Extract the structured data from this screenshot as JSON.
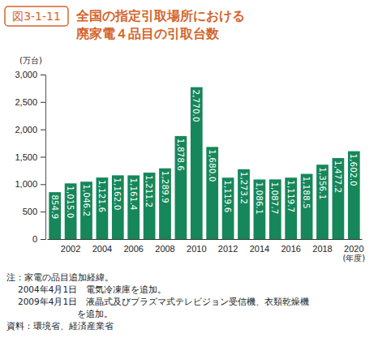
{
  "chart_data": {
    "type": "bar",
    "figure_label": "図3-1-11",
    "title": [
      "全国の指定引取場所における",
      "廃家電４品目の引取台数"
    ],
    "y_label": "(万台)",
    "x_label": "(年度)",
    "categories": [
      null,
      "2002",
      null,
      "2004",
      null,
      "2006",
      null,
      "2008",
      null,
      "2010",
      null,
      "2012",
      null,
      "2014",
      null,
      "2016",
      null,
      "2018",
      null,
      "2020"
    ],
    "values": [
      854.9,
      1015.0,
      1046.2,
      1121.6,
      1162.0,
      1161.4,
      1211.2,
      1289.9,
      1878.6,
      2770.0,
      1680.0,
      1119.6,
      1273.2,
      1086.1,
      1087.7,
      1119.7,
      1188.5,
      1356.1,
      1477.2,
      1602.0
    ],
    "value_labels": [
      "854.9",
      "1,015.0",
      "1,046.2",
      "1,121.6",
      "1,162.0",
      "1,161.4",
      "1,211.2",
      "1,289.9",
      "1,878.6",
      "2,770.0",
      "1,680.0",
      "1,119.6",
      "1,273.2",
      "1,086.1",
      "1,087.7",
      "1,119.7",
      "1,188.5",
      "1,356.1",
      "1,477.2",
      "1,602.0"
    ],
    "color": "#16875a",
    "ylim": [
      0,
      3000
    ],
    "yticks": [
      0,
      500,
      {
        "value": 1000,
        "label": "1,000"
      },
      {
        "value": 1500,
        "label": "1,500"
      },
      {
        "value": 2000,
        "label": "2,000"
      },
      {
        "value": 2500,
        "label": "2,500"
      },
      {
        "value": 3000,
        "label": "3,000"
      }
    ],
    "grid": false,
    "data_labels": true,
    "notes": [
      "注：家電の品目追加経緯。",
      "2004年4月1日　電気冷凍庫を追加。",
      "2009年4月1日　液晶式及びプラズマ式テレビジョン受信機、衣類乾燥機",
      "を追加。"
    ],
    "source": "資料：環境省、経済産業省"
  }
}
